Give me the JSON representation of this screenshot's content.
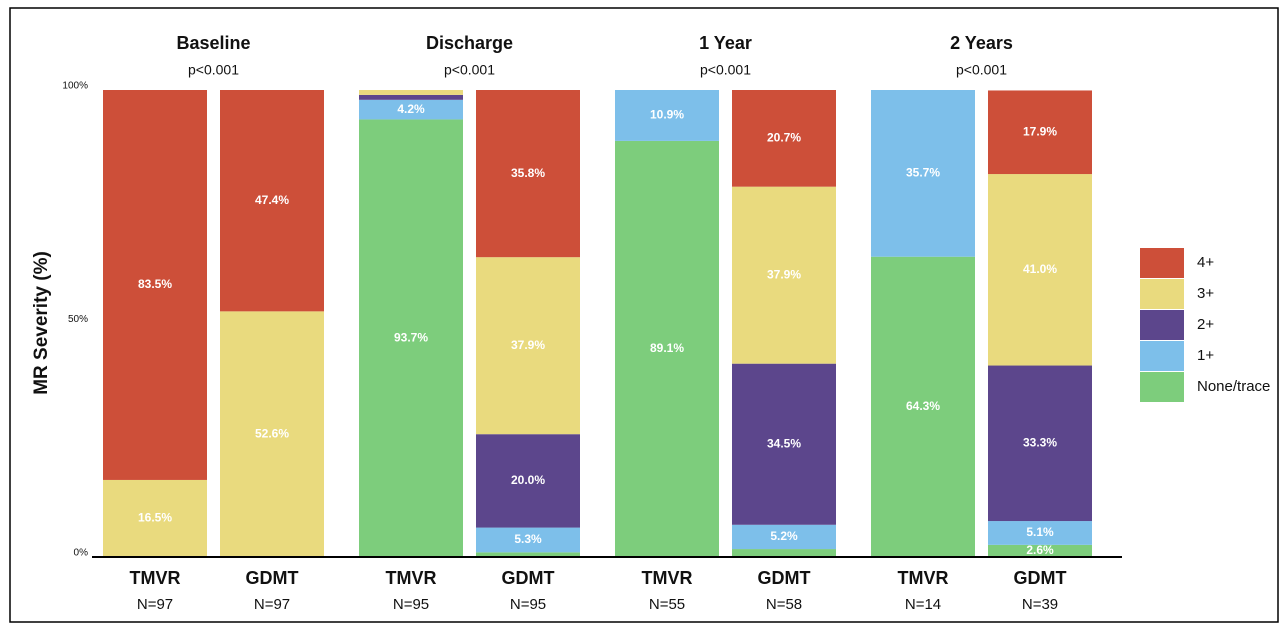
{
  "chart_data": {
    "type": "stacked_bar",
    "ylabel": "MR Severity (%)",
    "ylim": [
      0,
      100
    ],
    "yticks": [
      {
        "value": 0,
        "label": "0%"
      },
      {
        "value": 50,
        "label": "50%"
      },
      {
        "value": 100,
        "label": "100%"
      }
    ],
    "panels": [
      {
        "title": "Baseline",
        "subtitle": "p<0.001",
        "categories": [
          "TMVR",
          "GDMT"
        ],
        "n_labels": [
          "N=97",
          "N=97"
        ]
      },
      {
        "title": "Discharge",
        "subtitle": "p<0.001",
        "categories": [
          "TMVR",
          "GDMT"
        ],
        "n_labels": [
          "N=95",
          "N=95"
        ]
      },
      {
        "title": "1 Year",
        "subtitle": "p<0.001",
        "categories": [
          "TMVR",
          "GDMT"
        ],
        "n_labels": [
          "N=55",
          "N=58"
        ]
      },
      {
        "title": "2 Years",
        "subtitle": "p<0.001",
        "categories": [
          "TMVR",
          "GDMT"
        ],
        "n_labels": [
          "N=14",
          "N=39"
        ]
      }
    ],
    "series": [
      {
        "name": "None/trace",
        "color": "#7dcd7c",
        "values": [
          0,
          0,
          93.7,
          1.0,
          89.1,
          1.7,
          64.3,
          2.6
        ],
        "value_labels": [
          null,
          null,
          "93.7%",
          null,
          "89.1%",
          null,
          "64.3%",
          "2.6%"
        ]
      },
      {
        "name": "1+",
        "color": "#7dbfea",
        "values": [
          0,
          0,
          4.2,
          5.3,
          10.9,
          5.2,
          35.7,
          5.1
        ],
        "value_labels": [
          null,
          null,
          "4.2%",
          "5.3%",
          "10.9%",
          "5.2%",
          "35.7%",
          "5.1%"
        ]
      },
      {
        "name": "2+",
        "color": "#5c468c",
        "values": [
          0,
          0,
          1.05,
          20.0,
          0,
          34.5,
          0,
          33.3
        ],
        "value_labels": [
          null,
          null,
          null,
          "20.0%",
          null,
          "34.5%",
          null,
          "33.3%"
        ]
      },
      {
        "name": "3+",
        "color": "#e9da7e",
        "values": [
          16.5,
          52.6,
          1.05,
          37.9,
          0,
          37.9,
          0,
          41.0
        ],
        "value_labels": [
          "16.5%",
          "52.6%",
          null,
          "37.9%",
          null,
          "37.9%",
          null,
          "41.0%"
        ]
      },
      {
        "name": "4+",
        "color": "#cd4f39",
        "values": [
          83.5,
          47.4,
          0,
          35.8,
          0,
          20.7,
          0,
          17.9
        ],
        "value_labels": [
          "83.5%",
          "47.4%",
          null,
          "35.8%",
          null,
          "20.7%",
          null,
          "17.9%"
        ]
      }
    ]
  }
}
